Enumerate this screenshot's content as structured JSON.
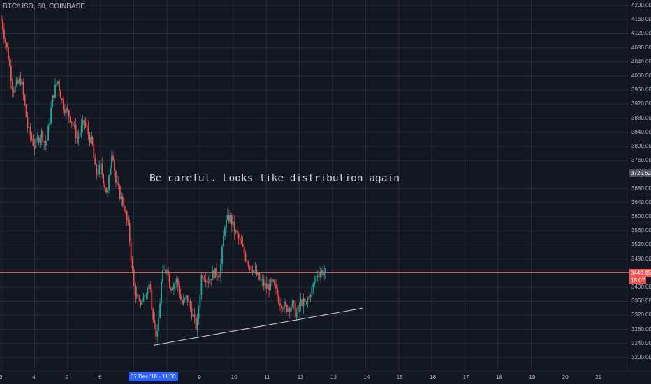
{
  "header": {
    "ticker": "BTC/USD, 60, COINBASE"
  },
  "annotation": {
    "text": "Be careful. Looks like distribution again"
  },
  "colors": {
    "background": "#131722",
    "grid": "#2a2e39",
    "up": "#26a69a",
    "down": "#ef5350",
    "price_line": "#e06666",
    "trendline": "#d1d4dc",
    "crosshair_tag": "#2962ff",
    "level_tag": "#4a4e59"
  },
  "price_tags": {
    "last_price": "3440.85",
    "countdown": "15:07",
    "level": "3725.62"
  },
  "crosshair_time": "07 Dec '18 - 11:00",
  "chart_data": {
    "type": "candlestick",
    "y_range": [
      3200,
      4200
    ],
    "y_ticks": [
      "4200.00",
      "4160.00",
      "4120.00",
      "4080.00",
      "4040.00",
      "4000.00",
      "3960.00",
      "3920.00",
      "3880.00",
      "3840.00",
      "3800.00",
      "3760.00",
      "3680.00",
      "3640.00",
      "3600.00",
      "3560.00",
      "3520.00",
      "3480.00",
      "3400.00",
      "3360.00",
      "3320.00",
      "3280.00",
      "3240.00",
      "3200.00"
    ],
    "x_ticks": [
      "3",
      "4",
      "5",
      "6",
      "9",
      "10",
      "11",
      "12",
      "13",
      "14",
      "15",
      "16",
      "17",
      "18",
      "19",
      "20",
      "21"
    ],
    "x_tick_days": [
      3,
      4,
      5,
      6,
      9,
      10,
      11,
      12,
      13,
      14,
      15,
      16,
      17,
      18,
      19,
      20,
      21
    ],
    "last_price": 3440.85,
    "horizontal_level": 3725.62,
    "trendline": {
      "from": [
        7.6,
        3235
      ],
      "to": [
        13.9,
        3340
      ]
    },
    "path": [
      [
        3.0,
        4160
      ],
      [
        3.2,
        4060
      ],
      [
        3.35,
        3960
      ],
      [
        3.6,
        3990
      ],
      [
        3.8,
        3850
      ],
      [
        4.0,
        3800
      ],
      [
        4.2,
        3840
      ],
      [
        4.35,
        3800
      ],
      [
        4.55,
        3940
      ],
      [
        4.7,
        3990
      ],
      [
        4.85,
        3920
      ],
      [
        5.1,
        3880
      ],
      [
        5.3,
        3820
      ],
      [
        5.5,
        3870
      ],
      [
        5.75,
        3800
      ],
      [
        5.85,
        3720
      ],
      [
        6.0,
        3740
      ],
      [
        6.2,
        3660
      ],
      [
        6.35,
        3800
      ],
      [
        6.45,
        3700
      ],
      [
        6.7,
        3630
      ],
      [
        6.85,
        3560
      ],
      [
        7.0,
        3400
      ],
      [
        7.15,
        3350
      ],
      [
        7.3,
        3370
      ],
      [
        7.5,
        3410
      ],
      [
        7.55,
        3340
      ],
      [
        7.7,
        3250
      ],
      [
        7.85,
        3430
      ],
      [
        8.0,
        3460
      ],
      [
        8.1,
        3400
      ],
      [
        8.3,
        3420
      ],
      [
        8.45,
        3350
      ],
      [
        8.6,
        3370
      ],
      [
        8.75,
        3330
      ],
      [
        8.9,
        3280
      ],
      [
        9.05,
        3440
      ],
      [
        9.25,
        3420
      ],
      [
        9.4,
        3440
      ],
      [
        9.6,
        3440
      ],
      [
        9.75,
        3580
      ],
      [
        9.9,
        3600
      ],
      [
        10.05,
        3560
      ],
      [
        10.2,
        3530
      ],
      [
        10.4,
        3480
      ],
      [
        10.6,
        3450
      ],
      [
        10.8,
        3420
      ],
      [
        11.0,
        3400
      ],
      [
        11.2,
        3410
      ],
      [
        11.4,
        3360
      ],
      [
        11.6,
        3340
      ],
      [
        11.8,
        3350
      ],
      [
        11.9,
        3320
      ],
      [
        12.05,
        3360
      ],
      [
        12.2,
        3350
      ],
      [
        12.4,
        3400
      ],
      [
        12.55,
        3440
      ],
      [
        12.7,
        3445
      ],
      [
        12.8,
        3441
      ]
    ]
  }
}
